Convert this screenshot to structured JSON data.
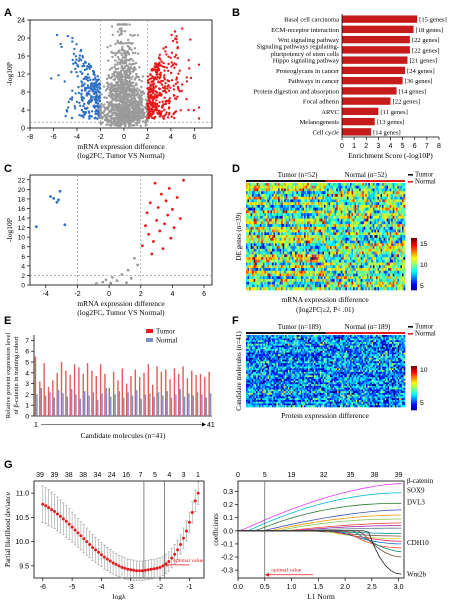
{
  "panels": {
    "A": "A",
    "B": "B",
    "C": "C",
    "D": "D",
    "E": "E",
    "F": "F",
    "G": "G"
  },
  "colors": {
    "up": "#e8191b",
    "down": "#2f6fc7",
    "ns": "#9a9a9a",
    "bar": "#c61b1b",
    "tumor": "#e35a5a",
    "normal": "#7b8fc8",
    "cv": "#e8191b",
    "tumor_bar": "#e8191b",
    "normal_bar": "#111111"
  },
  "chart_data": [
    {
      "id": "A",
      "type": "scatter",
      "xlabel": "mRNA expression difference",
      "xlabel2": "(log2FC, Tumor VS Normal)",
      "ylabel": "-log10P",
      "xticks": [
        "-8",
        "-6",
        "-4",
        "-2",
        "0",
        "2",
        "4",
        "6"
      ],
      "yticks": [
        "0",
        "4",
        "8",
        "12",
        "16",
        "20",
        "24"
      ],
      "xlim": [
        -8,
        7.5
      ],
      "ylim": [
        0,
        24
      ],
      "thresholds": {
        "log2fc": [
          -2,
          2
        ],
        "neglog10p": 1.3
      },
      "groups": [
        {
          "group": "down",
          "x_range": [
            -6.5,
            -2
          ],
          "y_range": [
            2,
            21
          ],
          "n": 260
        },
        {
          "group": "ns",
          "x_range": [
            -2,
            2
          ],
          "y_range": [
            0,
            23
          ],
          "n": 1100
        },
        {
          "group": "up",
          "x_range": [
            2,
            6.5
          ],
          "y_range": [
            2,
            23
          ],
          "n": 340
        }
      ]
    },
    {
      "id": "B",
      "type": "bar",
      "xlabel": "Enrichment Score (-log10P)",
      "xticks": [
        "0",
        "1",
        "2",
        "3",
        "4",
        "5",
        "6",
        "7",
        "8"
      ],
      "xlim": [
        0,
        8
      ],
      "categories": [
        "Basal cell carcinoma",
        "ECM-receptor interaction",
        "Wnt signaling pathway",
        "Signaling pathways regulating-pluripotency of stem cells",
        "Hippo signaling pathway",
        "Proteoglycans in cancer",
        "Pathways in cancer",
        "Protein digestion and absorption",
        "Focal adherin",
        "ARVC",
        "Melanogenesis",
        "Cell cycle"
      ],
      "category_lines": [
        [
          "Basal cell carcinoma"
        ],
        [
          "ECM-receptor interaction"
        ],
        [
          "Wnt signaling pathway"
        ],
        [
          "Signaling pathways regulating-",
          "pluripotency of stem cells"
        ],
        [
          "Hippo signaling pathway"
        ],
        [
          "Proteoglycans in cancer"
        ],
        [
          "Pathways in cancer"
        ],
        [
          "Protein digestion and absorption"
        ],
        [
          "Focal adherin"
        ],
        [
          "ARVC"
        ],
        [
          "Melanogenesis"
        ],
        [
          "Cell cycle"
        ]
      ],
      "values": [
        6.2,
        5.9,
        5.6,
        5.6,
        5.4,
        5.2,
        5.0,
        4.5,
        4.0,
        3.0,
        2.7,
        2.4
      ],
      "labels": [
        "[15 genes]",
        "[18 genes]",
        "[22 genes]",
        "[22 genes]",
        "[21 genes]",
        "[24 genes]",
        "[36 genes]",
        "[14 genes]",
        "[22 genes]",
        "[11 genes]",
        "[13 genes]",
        "[14 genes]"
      ]
    },
    {
      "id": "C",
      "type": "scatter",
      "xlabel": "mRNA expression difference",
      "xlabel2": "(log2FC, Tumor VS Normal)",
      "ylabel": "-log10P",
      "xticks": [
        "-4",
        "-2",
        "0",
        "2",
        "4",
        "6"
      ],
      "yticks": [
        "0",
        "2",
        "4",
        "6",
        "8",
        "10",
        "12",
        "14",
        "16",
        "18",
        "20",
        "22"
      ],
      "xlim": [
        -5,
        6.5
      ],
      "ylim": [
        0,
        23
      ],
      "thresholds": {
        "log2fc": [
          -2,
          2
        ],
        "neglog10p": 1.3
      },
      "points": [
        {
          "x": -4.6,
          "y": 12.2,
          "g": "down"
        },
        {
          "x": -3.7,
          "y": 18.5,
          "g": "down"
        },
        {
          "x": -3.5,
          "y": 18.1,
          "g": "down"
        },
        {
          "x": -3.3,
          "y": 17.3,
          "g": "down"
        },
        {
          "x": -3.2,
          "y": 17.8,
          "g": "down"
        },
        {
          "x": -3.1,
          "y": 19.6,
          "g": "down"
        },
        {
          "x": -2.8,
          "y": 12.6,
          "g": "down"
        },
        {
          "x": -0.4,
          "y": 0.6,
          "g": "ns"
        },
        {
          "x": -0.2,
          "y": 1.1,
          "g": "ns"
        },
        {
          "x": 0.1,
          "y": 0.4,
          "g": "ns"
        },
        {
          "x": 0.2,
          "y": 1.6,
          "g": "ns"
        },
        {
          "x": 0.5,
          "y": 0.9,
          "g": "ns"
        },
        {
          "x": 0.8,
          "y": 2.2,
          "g": "ns"
        },
        {
          "x": 1.2,
          "y": 3.1,
          "g": "ns"
        },
        {
          "x": 1.4,
          "y": 1.4,
          "g": "ns"
        },
        {
          "x": 1.6,
          "y": 5.6,
          "g": "ns"
        },
        {
          "x": 1.8,
          "y": 4.2,
          "g": "ns"
        },
        {
          "x": -0.8,
          "y": 0.3,
          "g": "ns"
        },
        {
          "x": 1.1,
          "y": 0.5,
          "g": "ns"
        },
        {
          "x": 2.1,
          "y": 8.2,
          "g": "up"
        },
        {
          "x": 2.3,
          "y": 12.4,
          "g": "up"
        },
        {
          "x": 2.4,
          "y": 15.1,
          "g": "up"
        },
        {
          "x": 2.5,
          "y": 10.6,
          "g": "up"
        },
        {
          "x": 2.6,
          "y": 17.2,
          "g": "up"
        },
        {
          "x": 2.8,
          "y": 9.1,
          "g": "up"
        },
        {
          "x": 2.9,
          "y": 21.3,
          "g": "up"
        },
        {
          "x": 3.0,
          "y": 13.5,
          "g": "up"
        },
        {
          "x": 3.1,
          "y": 16.2,
          "g": "up"
        },
        {
          "x": 3.2,
          "y": 11.3,
          "g": "up"
        },
        {
          "x": 3.3,
          "y": 19.0,
          "g": "up"
        },
        {
          "x": 3.5,
          "y": 12.8,
          "g": "up"
        },
        {
          "x": 3.6,
          "y": 17.6,
          "g": "up"
        },
        {
          "x": 3.7,
          "y": 14.6,
          "g": "up"
        },
        {
          "x": 3.8,
          "y": 20.2,
          "g": "up"
        },
        {
          "x": 3.9,
          "y": 9.8,
          "g": "up"
        },
        {
          "x": 4.0,
          "y": 15.8,
          "g": "up"
        },
        {
          "x": 4.1,
          "y": 12.0,
          "g": "up"
        },
        {
          "x": 4.3,
          "y": 18.3,
          "g": "up"
        },
        {
          "x": 4.5,
          "y": 13.9,
          "g": "up"
        },
        {
          "x": 4.7,
          "y": 21.9,
          "g": "up"
        },
        {
          "x": 3.4,
          "y": 7.6,
          "g": "up"
        },
        {
          "x": 2.7,
          "y": 6.5,
          "g": "up"
        }
      ]
    },
    {
      "id": "D",
      "type": "heatmap",
      "title": "mRNA expression difference",
      "subtitle": "(|log2FC|≥2, P< .01)",
      "ylabel": "DE genes (n=39)",
      "group_labels": [
        "Tumor (n=52)",
        "Normal (n=52)"
      ],
      "legend": [
        "Tumor",
        "Normal"
      ],
      "colorbar_ticks": [
        "15",
        "10",
        "5"
      ],
      "rows": 39,
      "cols": 104
    },
    {
      "id": "E",
      "type": "bar",
      "ylabel": "Relative protein expression level",
      "ylabel2": "of β-catenin in training cohort",
      "xlabel": "Candidate molecules (n=41)",
      "x_start": "1",
      "x_end": "41",
      "yticks": [
        "0",
        "1",
        "2",
        "3",
        "4",
        "5",
        "6",
        "7"
      ],
      "ylim": [
        0,
        7.5
      ],
      "series": [
        {
          "name": "Tumor",
          "values": [
            5.5,
            3.2,
            4.9,
            2.7,
            3.3,
            4.0,
            5.0,
            4.2,
            3.8,
            4.8,
            4.5,
            3.9,
            4.9,
            4.2,
            3.7,
            4.8,
            3.9,
            2.6,
            4.1,
            3.3,
            4.4,
            3.0,
            3.7,
            4.3,
            3.6,
            4.0,
            4.8,
            2.9,
            4.6,
            4.1,
            4.3,
            3.4,
            4.4,
            3.9,
            4.6,
            3.5,
            4.2,
            3.8,
            3.9,
            3.6,
            4.1
          ]
        },
        {
          "name": "Normal",
          "values": [
            2.0,
            2.6,
            1.9,
            2.2,
            1.7,
            2.4,
            2.1,
            1.8,
            2.5,
            2.0,
            1.6,
            2.3,
            1.9,
            2.2,
            1.5,
            2.1,
            2.6,
            1.8,
            2.0,
            2.3,
            1.7,
            2.2,
            1.9,
            2.4,
            1.6,
            2.0,
            2.1,
            1.8,
            2.2,
            1.9,
            2.3,
            1.7,
            2.0,
            2.5,
            1.8,
            2.1,
            1.9,
            2.2,
            2.0,
            1.7,
            2.1
          ]
        }
      ]
    },
    {
      "id": "F",
      "type": "heatmap",
      "title": "Protein expression difference",
      "ylabel": "Candidate molecules (n=41)",
      "group_labels": [
        "Tumor (n=189)",
        "Normal (n=189)"
      ],
      "legend": [
        "Tumor",
        "Normal"
      ],
      "colorbar_ticks": [
        "10",
        "5"
      ],
      "rows": 41,
      "cols": 110
    },
    {
      "id": "G1",
      "type": "line",
      "xlabel": "logλ",
      "ylabel": "Partial likelihood deviance",
      "xticks": [
        "-6",
        "-5",
        "-4",
        "-3",
        "-2",
        "-1"
      ],
      "yticks": [
        "9.5",
        "10.0",
        "10.5",
        "11.0"
      ],
      "top_ticks": [
        "39",
        "39",
        "38",
        "38",
        "34",
        "24",
        "16",
        "7",
        "5",
        "4",
        "3",
        "1"
      ],
      "xlim": [
        -6.3,
        -0.5
      ],
      "ylim": [
        9.25,
        11.25
      ],
      "vlines": [
        -2.55,
        -1.85
      ],
      "annotation": "optimal value",
      "x": [
        -6.0,
        -5.9,
        -5.8,
        -5.7,
        -5.6,
        -5.5,
        -5.4,
        -5.3,
        -5.2,
        -5.1,
        -5.0,
        -4.9,
        -4.8,
        -4.7,
        -4.6,
        -4.5,
        -4.4,
        -4.3,
        -4.2,
        -4.1,
        -4.0,
        -3.9,
        -3.8,
        -3.7,
        -3.6,
        -3.5,
        -3.4,
        -3.3,
        -3.2,
        -3.1,
        -3.0,
        -2.9,
        -2.8,
        -2.7,
        -2.6,
        -2.5,
        -2.4,
        -2.3,
        -2.2,
        -2.1,
        -2.0,
        -1.9,
        -1.8,
        -1.7,
        -1.6,
        -1.5,
        -1.4,
        -1.3,
        -1.2,
        -1.1,
        -1.0,
        -0.9,
        -0.8,
        -0.7
      ],
      "y": [
        10.77,
        10.74,
        10.7,
        10.66,
        10.62,
        10.57,
        10.52,
        10.47,
        10.42,
        10.36,
        10.3,
        10.24,
        10.18,
        10.12,
        10.06,
        10.0,
        9.94,
        9.88,
        9.83,
        9.78,
        9.73,
        9.68,
        9.64,
        9.6,
        9.56,
        9.53,
        9.5,
        9.47,
        9.45,
        9.43,
        9.42,
        9.41,
        9.4,
        9.4,
        9.4,
        9.41,
        9.42,
        9.43,
        9.44,
        9.45,
        9.47,
        9.5,
        9.54,
        9.59,
        9.66,
        9.74,
        9.83,
        9.94,
        10.07,
        10.22,
        10.4,
        10.6,
        10.84,
        11.0
      ],
      "err": [
        0.38,
        0.37,
        0.37,
        0.36,
        0.35,
        0.35,
        0.34,
        0.33,
        0.33,
        0.32,
        0.31,
        0.31,
        0.3,
        0.29,
        0.29,
        0.28,
        0.27,
        0.27,
        0.26,
        0.26,
        0.25,
        0.25,
        0.24,
        0.24,
        0.23,
        0.23,
        0.22,
        0.22,
        0.22,
        0.21,
        0.21,
        0.21,
        0.2,
        0.2,
        0.2,
        0.2,
        0.2,
        0.2,
        0.2,
        0.2,
        0.2,
        0.2,
        0.2,
        0.2,
        0.2,
        0.2,
        0.2,
        0.2,
        0.21,
        0.21,
        0.21,
        0.22,
        0.22,
        0.23
      ]
    },
    {
      "id": "G2",
      "type": "line",
      "xlabel": "L1 Norm",
      "ylabel": "coefficients",
      "xticks": [
        "0.0",
        "0.5",
        "1.0",
        "1.5",
        "2.0",
        "2.5",
        "3.0"
      ],
      "yticks": [
        "-0.3",
        "-0.2",
        "-0.1",
        "0.0",
        "0.1",
        "0.2",
        "0.3"
      ],
      "top_ticks": [
        "0",
        "5",
        "19",
        "32",
        "35",
        "38",
        "39"
      ],
      "xlim": [
        0,
        3.1
      ],
      "ylim": [
        -0.36,
        0.38
      ],
      "vline": 0.5,
      "annotation": "optimal value",
      "right_labels": [
        "β-catenin",
        "SOX9",
        "DVL3",
        "CDH10",
        "Wnt2b"
      ],
      "series": [
        {
          "name": "β-catenin",
          "color": "#e040fb",
          "end": 0.36
        },
        {
          "name": "SOX9",
          "color": "#00bcd4",
          "end": 0.29
        },
        {
          "name": "DVL3",
          "color": "#2e7d32",
          "end": 0.21
        },
        {
          "name": "",
          "color": "#3f51b5",
          "end": 0.16
        },
        {
          "name": "",
          "color": "#ff9800",
          "end": 0.12
        },
        {
          "name": "",
          "color": "#8bc34a",
          "end": 0.09
        },
        {
          "name": "",
          "color": "#f44336",
          "end": 0.06
        },
        {
          "name": "",
          "color": "#9c27b0",
          "end": 0.04
        },
        {
          "name": "",
          "color": "#607d8b",
          "end": 0.02
        },
        {
          "name": "",
          "color": "#009688",
          "end": -0.02
        },
        {
          "name": "",
          "color": "#795548",
          "end": -0.04
        },
        {
          "name": "",
          "color": "#cddc39",
          "end": -0.06
        },
        {
          "name": "",
          "color": "#e91e63",
          "end": -0.08
        },
        {
          "name": "CDH10",
          "color": "#1565c0",
          "end": -0.1
        },
        {
          "name": "",
          "color": "#ff5722",
          "end": -0.13
        },
        {
          "name": "",
          "color": "#00897b",
          "end": -0.16
        },
        {
          "name": "",
          "color": "#6d4c41",
          "end": -0.2
        },
        {
          "name": "Wnt2b",
          "color": "#212121",
          "end": -0.33
        }
      ]
    }
  ]
}
